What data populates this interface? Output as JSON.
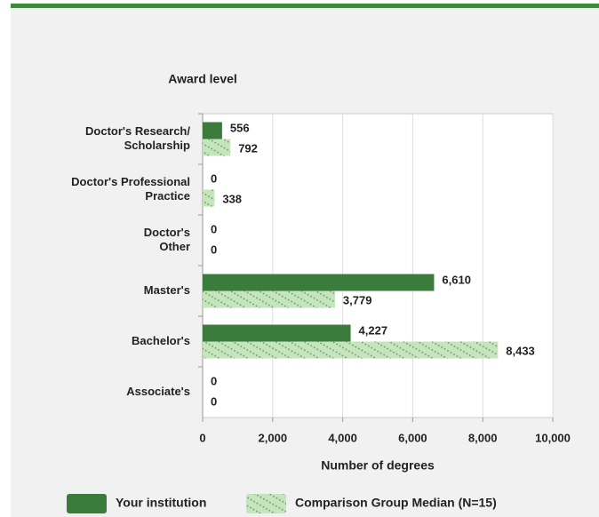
{
  "chart_data": {
    "type": "hbar",
    "ylabel": "Award level",
    "xlabel": "Number of degrees",
    "categories": [
      [
        "Doctor's Research/",
        "Scholarship"
      ],
      [
        "Doctor's Professional",
        "Practice"
      ],
      [
        "Doctor's",
        "Other"
      ],
      [
        "Master's"
      ],
      [
        "Bachelor's"
      ],
      [
        "Associate's"
      ]
    ],
    "series": [
      {
        "name": "Your institution",
        "color": "#3b7b3b",
        "pattern": false,
        "values": [
          556,
          0,
          0,
          6610,
          4227,
          0
        ],
        "value_labels": [
          "556",
          "0",
          "0",
          "6,610",
          "4,227",
          "0"
        ]
      },
      {
        "name": "Comparison Group Median (N=15)",
        "color": "#c6e4bd",
        "pattern": true,
        "values": [
          792,
          338,
          0,
          3779,
          8433,
          0
        ],
        "value_labels": [
          "792",
          "338",
          "0",
          "3,779",
          "8,433",
          "0"
        ]
      }
    ],
    "xlim": [
      0,
      10000
    ],
    "xticks": [
      0,
      {
        "value": 2000,
        "label": "2,000"
      },
      {
        "value": 4000,
        "label": "4,000"
      },
      {
        "value": 6000,
        "label": "6,000"
      },
      {
        "value": 8000,
        "label": "8,000"
      },
      {
        "value": 10000,
        "label": "10,000"
      }
    ],
    "grid": true,
    "legend": "bottom"
  }
}
